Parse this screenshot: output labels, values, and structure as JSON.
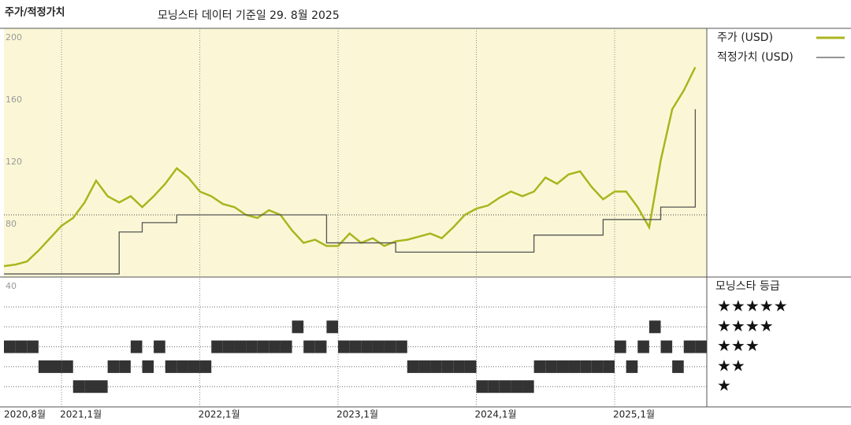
{
  "chart_data": {
    "type": "line",
    "title": "주가/적정가치",
    "subtitle": "모닝스타 데이터 기준일 29. 8월 2025",
    "x": [
      "2020-08",
      "2020-09",
      "2020-10",
      "2020-11",
      "2020-12",
      "2021-01",
      "2021-02",
      "2021-03",
      "2021-04",
      "2021-05",
      "2021-06",
      "2021-07",
      "2021-08",
      "2021-09",
      "2021-10",
      "2021-11",
      "2021-12",
      "2022-01",
      "2022-02",
      "2022-03",
      "2022-04",
      "2022-05",
      "2022-06",
      "2022-07",
      "2022-08",
      "2022-09",
      "2022-10",
      "2022-11",
      "2022-12",
      "2023-01",
      "2023-02",
      "2023-03",
      "2023-04",
      "2023-05",
      "2023-06",
      "2023-07",
      "2023-08",
      "2023-09",
      "2023-10",
      "2023-11",
      "2023-12",
      "2024-01",
      "2024-02",
      "2024-03",
      "2024-04",
      "2024-05",
      "2024-06",
      "2024-07",
      "2024-08",
      "2024-09",
      "2024-10",
      "2024-11",
      "2024-12",
      "2025-01",
      "2025-02",
      "2025-03",
      "2025-04",
      "2025-05",
      "2025-06",
      "2025-07",
      "2025-08"
    ],
    "series": [
      {
        "name": "주가 (USD)",
        "color": "#a9b51e",
        "values": [
          47,
          48,
          50,
          57,
          65,
          73,
          78,
          88,
          102,
          92,
          88,
          92,
          85,
          92,
          100,
          110,
          104,
          95,
          92,
          87,
          85,
          80,
          78,
          83,
          80,
          70,
          62,
          64,
          60,
          60,
          68,
          62,
          65,
          60,
          63,
          64,
          66,
          68,
          65,
          72,
          80,
          84,
          86,
          91,
          95,
          92,
          95,
          104,
          100,
          106,
          108,
          98,
          90,
          95,
          95,
          85,
          72,
          115,
          148,
          160,
          175
        ]
      },
      {
        "name": "적정가치 (USD)",
        "color": "#555555",
        "values": [
          42,
          42,
          42,
          42,
          42,
          42,
          42,
          42,
          42,
          42,
          69,
          69,
          75,
          75,
          75,
          80,
          80,
          80,
          80,
          80,
          80,
          80,
          80,
          80,
          80,
          80,
          80,
          80,
          62,
          62,
          62,
          62,
          62,
          62,
          56,
          56,
          56,
          56,
          56,
          56,
          56,
          56,
          56,
          56,
          56,
          56,
          67,
          67,
          67,
          67,
          67,
          67,
          77,
          77,
          77,
          77,
          77,
          85,
          85,
          85,
          148
        ]
      }
    ],
    "ylim": [
      40,
      200
    ],
    "yticks": [
      40,
      80,
      120,
      160,
      200
    ],
    "reference_line": 80,
    "xticks": [
      {
        "value": "2020-08",
        "label": "2020,8월"
      },
      {
        "value": "2021-01",
        "label": "2021,1월"
      },
      {
        "value": "2022-01",
        "label": "2022,1월"
      },
      {
        "value": "2023-01",
        "label": "2023,1월"
      },
      {
        "value": "2024-01",
        "label": "2024,1월"
      },
      {
        "value": "2025-01",
        "label": "2025,1월"
      }
    ],
    "rating_title": "모닝스타 등급",
    "rating_levels": [
      5,
      4,
      3,
      2,
      1
    ],
    "rating_labels": [
      "★★★★★",
      "★★★★",
      "★★★",
      "★★",
      "★"
    ],
    "ratings": [
      3,
      3,
      3,
      2,
      2,
      2,
      1,
      1,
      1,
      2,
      2,
      3,
      2,
      3,
      2,
      2,
      2,
      2,
      3,
      3,
      3,
      3,
      3,
      3,
      3,
      4,
      3,
      3,
      4,
      3,
      3,
      3,
      3,
      3,
      3,
      2,
      2,
      2,
      2,
      2,
      2,
      1,
      1,
      1,
      1,
      1,
      2,
      2,
      2,
      2,
      2,
      2,
      2,
      3,
      2,
      3,
      4,
      3,
      2,
      3,
      3
    ],
    "ratings_color": "#333333"
  }
}
